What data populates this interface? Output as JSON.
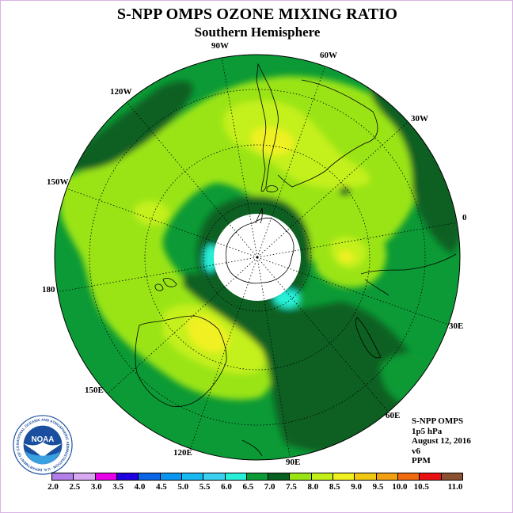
{
  "header": {
    "title": "S-NPP OMPS OZONE MIXING RATIO",
    "subtitle": "Southern Hemisphere"
  },
  "map": {
    "projection": "polar stereographic, south pole",
    "longitude_labels": [
      "90W",
      "60W",
      "30W",
      "0",
      "30E",
      "60E",
      "90E",
      "120E",
      "150E",
      "180",
      "150W",
      "120W"
    ]
  },
  "info": {
    "lines": [
      "S-NPP OMPS",
      "1p5 hPa",
      "August 12, 2016",
      "v6",
      "PPM"
    ]
  },
  "colorbar": {
    "ticks": [
      "2.0",
      "2.5",
      "3.0",
      "3.5",
      "4.0",
      "4.5",
      "5.0",
      "5.5",
      "6.0",
      "6.5",
      "7.0",
      "7.5",
      "8.0",
      "8.5",
      "9.0",
      "9.5",
      "10.0",
      "10.5",
      "11.0"
    ],
    "colors": [
      "#b27ee8",
      "#d9a8f2",
      "#e800e8",
      "#2000e0",
      "#0a64e6",
      "#0a96f0",
      "#18b8f0",
      "#3cd0f0",
      "#28f0d8",
      "#0c9a36",
      "#086020",
      "#9ae414",
      "#c4f01a",
      "#f0f020",
      "#f0c814",
      "#f0a010",
      "#f06a10",
      "#e81010",
      "#8a5030"
    ]
  },
  "logo": {
    "text": "NOAA",
    "ring_text": "NATIONAL OCEANIC AND ATMOSPHERIC ADMINISTRATION · U.S. DEPARTMENT OF COMMERCE"
  }
}
